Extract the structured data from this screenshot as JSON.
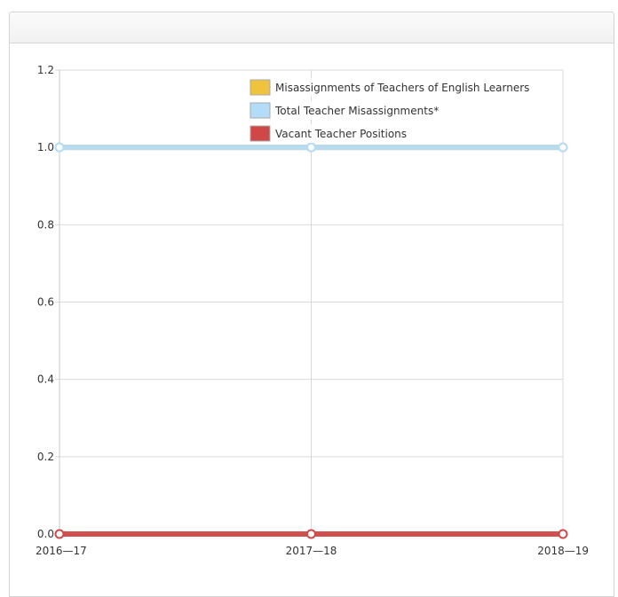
{
  "panel": {
    "title": ""
  },
  "colors": {
    "grid": "#d9d9d9",
    "axis": "#c8c8c8",
    "english_learners": "#f0c33c",
    "total_misassignments": "#b2dcf8",
    "vacant_positions": "#d04747"
  },
  "chart_data": {
    "type": "line",
    "title": "",
    "xlabel": "",
    "ylabel": "",
    "categories": [
      "2016—17",
      "2017—18",
      "2018—19"
    ],
    "ylim": [
      0,
      1.2
    ],
    "yticks": [
      "0.0",
      "0.2",
      "0.4",
      "0.6",
      "0.8",
      "1.0",
      "1.2"
    ],
    "grid": true,
    "legend_position": "top-right",
    "series": [
      {
        "name": "Misassignments of Teachers of English Learners",
        "color": "#f0c33c",
        "values": [
          1,
          1,
          1
        ]
      },
      {
        "name": "Total Teacher Misassignments*",
        "color": "#b2dcf8",
        "values": [
          1,
          1,
          1
        ]
      },
      {
        "name": "Vacant Teacher Positions",
        "color": "#d04747",
        "values": [
          0,
          0,
          0
        ]
      }
    ]
  }
}
